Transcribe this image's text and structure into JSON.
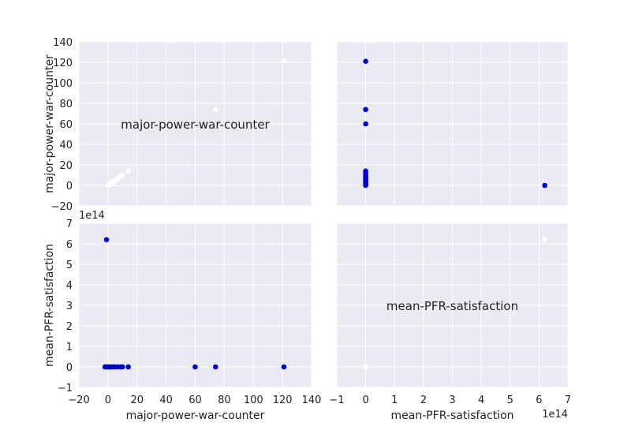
{
  "chart_data": [
    {
      "type": "scatter",
      "panel": "top-left",
      "diagonal_label": "major-power-war-counter",
      "ylabel": "major-power-war-counter",
      "xlim": [
        -20,
        140
      ],
      "ylim": [
        -20,
        140
      ],
      "yticks": [
        "−20",
        "0",
        "20",
        "40",
        "60",
        "80",
        "100",
        "120",
        "140"
      ],
      "point_color": "#ffffff",
      "points": [
        {
          "x": 0,
          "y": 0
        },
        {
          "x": 1,
          "y": 1
        },
        {
          "x": 2,
          "y": 2
        },
        {
          "x": 3,
          "y": 3
        },
        {
          "x": 4,
          "y": 4
        },
        {
          "x": 5,
          "y": 5
        },
        {
          "x": 7,
          "y": 7
        },
        {
          "x": 9,
          "y": 9
        },
        {
          "x": 10,
          "y": 10
        },
        {
          "x": 14,
          "y": 14
        },
        {
          "x": 74,
          "y": 74
        },
        {
          "x": 121,
          "y": 121
        }
      ]
    },
    {
      "type": "scatter",
      "panel": "top-right",
      "xlim": [
        -1,
        7
      ],
      "ylim": [
        -20,
        140
      ],
      "x_scale": "1e14",
      "point_color": "#0000cc",
      "points": [
        {
          "x": 0,
          "y": 121
        },
        {
          "x": 0,
          "y": 74
        },
        {
          "x": 0,
          "y": 60
        },
        {
          "x": 0,
          "y": 14
        },
        {
          "x": 0,
          "y": 12
        },
        {
          "x": 0,
          "y": 10
        },
        {
          "x": 0,
          "y": 8
        },
        {
          "x": 0,
          "y": 7
        },
        {
          "x": 0,
          "y": 5
        },
        {
          "x": 0,
          "y": 4
        },
        {
          "x": 0,
          "y": 3
        },
        {
          "x": 0,
          "y": 2
        },
        {
          "x": 0,
          "y": 1
        },
        {
          "x": 0,
          "y": 0
        },
        {
          "x": 6.2,
          "y": 0
        }
      ]
    },
    {
      "type": "scatter",
      "panel": "bottom-left",
      "xlabel": "major-power-war-counter",
      "ylabel": "mean-PFR-satisfaction",
      "xlim": [
        -20,
        140
      ],
      "ylim": [
        -1,
        7
      ],
      "y_scale": "1e14",
      "xticks": [
        "−20",
        "0",
        "20",
        "40",
        "60",
        "80",
        "100",
        "120",
        "140"
      ],
      "yticks": [
        "−1",
        "0",
        "1",
        "2",
        "3",
        "4",
        "5",
        "6",
        "7"
      ],
      "point_color": "#0000cc",
      "points": [
        {
          "x": -1,
          "y": 6.2
        },
        {
          "x": -2,
          "y": 0
        },
        {
          "x": -1,
          "y": 0
        },
        {
          "x": 0,
          "y": 0
        },
        {
          "x": 1,
          "y": 0
        },
        {
          "x": 2,
          "y": 0
        },
        {
          "x": 3,
          "y": 0
        },
        {
          "x": 4,
          "y": 0
        },
        {
          "x": 5,
          "y": 0
        },
        {
          "x": 7,
          "y": 0
        },
        {
          "x": 9,
          "y": 0
        },
        {
          "x": 10,
          "y": 0
        },
        {
          "x": 14,
          "y": 0
        },
        {
          "x": 60,
          "y": 0
        },
        {
          "x": 74,
          "y": 0
        },
        {
          "x": 121,
          "y": 0
        }
      ]
    },
    {
      "type": "scatter",
      "panel": "bottom-right",
      "diagonal_label": "mean-PFR-satisfaction",
      "xlabel": "mean-PFR-satisfaction",
      "xlim": [
        -1,
        7
      ],
      "ylim": [
        -1,
        7
      ],
      "x_scale": "1e14",
      "xticks": [
        "−1",
        "0",
        "1",
        "2",
        "3",
        "4",
        "5",
        "6",
        "7"
      ],
      "point_color": "#ffffff",
      "points": [
        {
          "x": 0,
          "y": 0
        },
        {
          "x": 6.2,
          "y": 6.2
        }
      ]
    }
  ],
  "style": {
    "panel_bg": "#eaeaf2",
    "grid_color": "#ffffff",
    "text_color": "#222222"
  }
}
